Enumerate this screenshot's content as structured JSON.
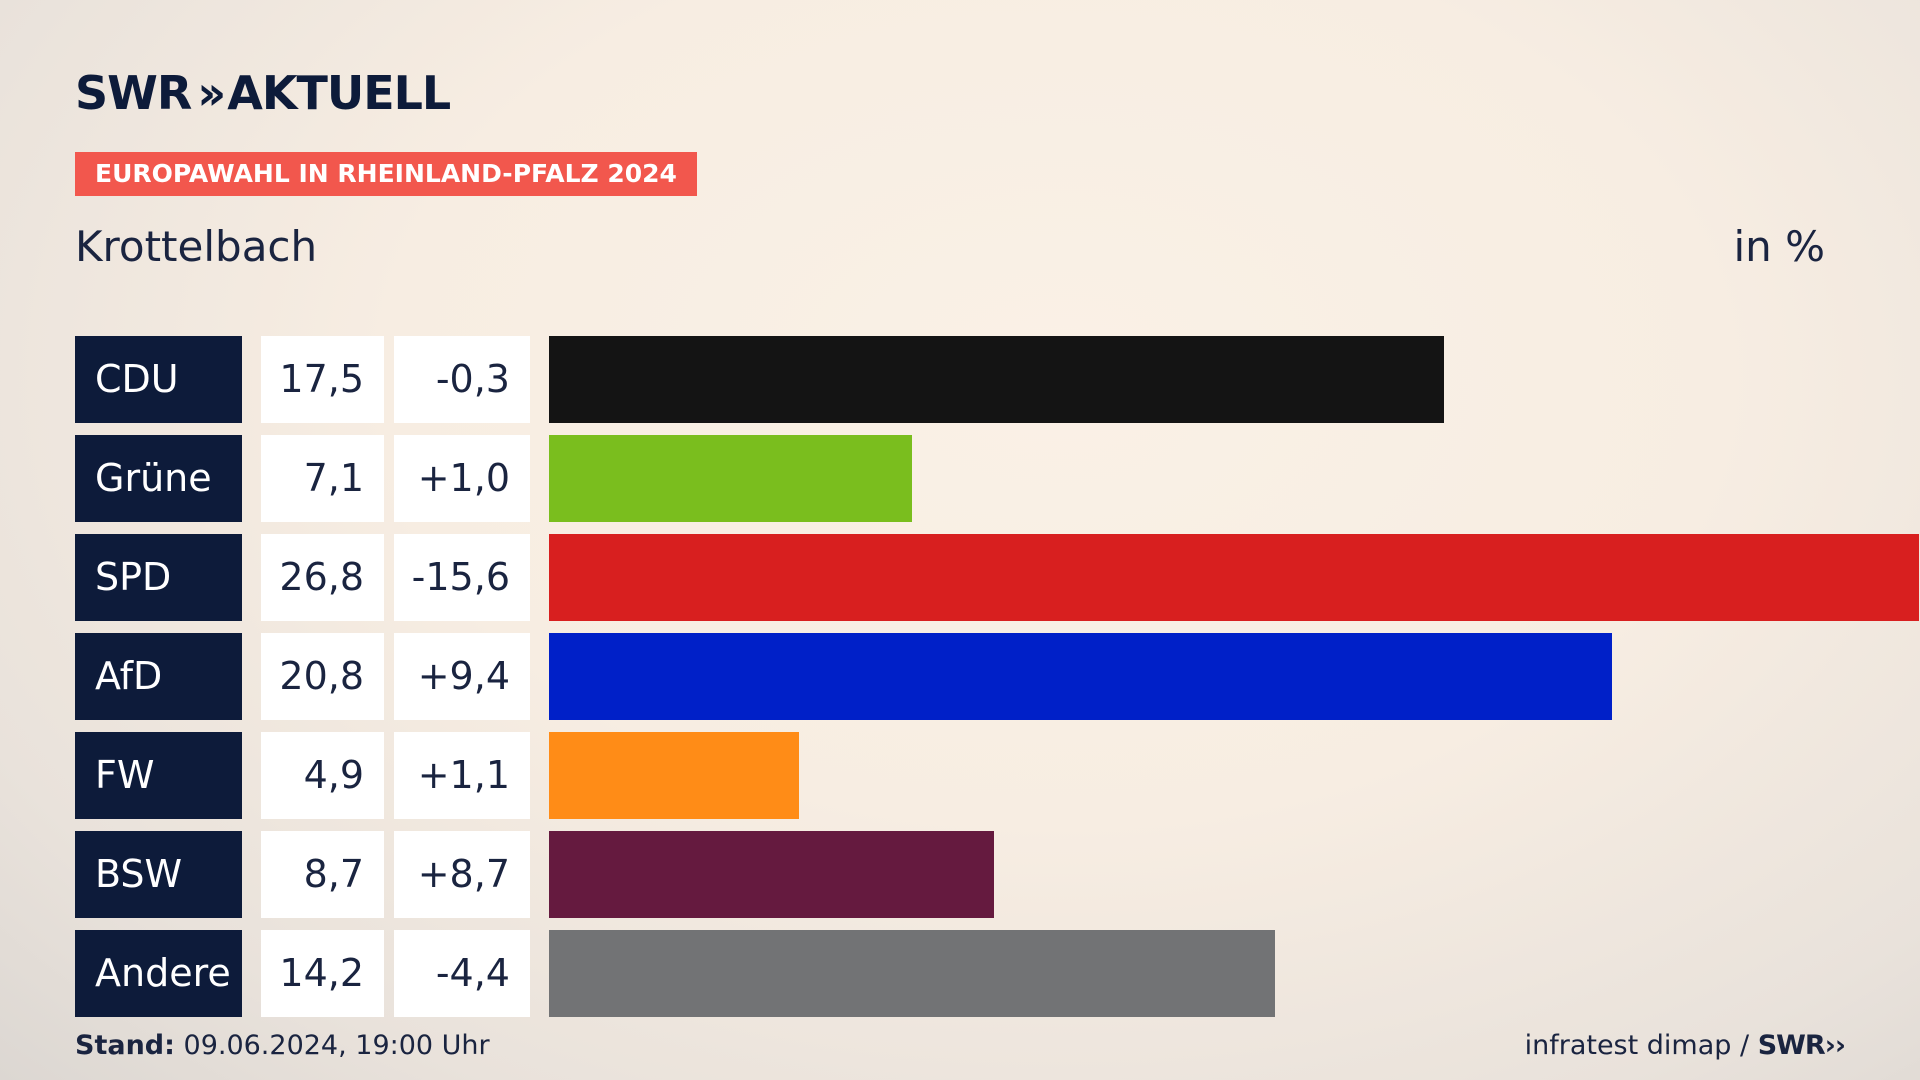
{
  "header": {
    "brand_part1": "SWR",
    "brand_part2": "AKTUELL",
    "tag": "EUROPAWAHL IN RHEINLAND-PFALZ 2024",
    "region": "Krottelbach",
    "unit": "in %"
  },
  "chart_data": {
    "type": "bar",
    "orientation": "horizontal",
    "categories": [
      "CDU",
      "Grüne",
      "SPD",
      "AfD",
      "FW",
      "BSW",
      "Andere"
    ],
    "values": [
      17.5,
      7.1,
      26.8,
      20.8,
      4.9,
      8.7,
      14.2
    ],
    "value_labels": [
      "17,5",
      "7,1",
      "26,8",
      "20,8",
      "4,9",
      "8,7",
      "14,2"
    ],
    "changes": [
      -0.3,
      1.0,
      -15.6,
      9.4,
      1.1,
      8.7,
      -4.4
    ],
    "change_labels": [
      "-0,3",
      "+1,0",
      "-15,6",
      "+9,4",
      "+1,1",
      "+8,7",
      "-4,4"
    ],
    "colors": [
      "#141414",
      "#7abe1e",
      "#d81f1f",
      "#0020c8",
      "#ff8c17",
      "#651a3f",
      "#727375"
    ],
    "title": "Krottelbach",
    "unit": "in %",
    "xlim": [
      0,
      26.8
    ],
    "grid": false,
    "legend": "none"
  },
  "footer": {
    "stand_label": "Stand:",
    "stand_value": "09.06.2024, 19:00 Uhr",
    "source": "infratest dimap /",
    "source_brand": "SWR"
  }
}
